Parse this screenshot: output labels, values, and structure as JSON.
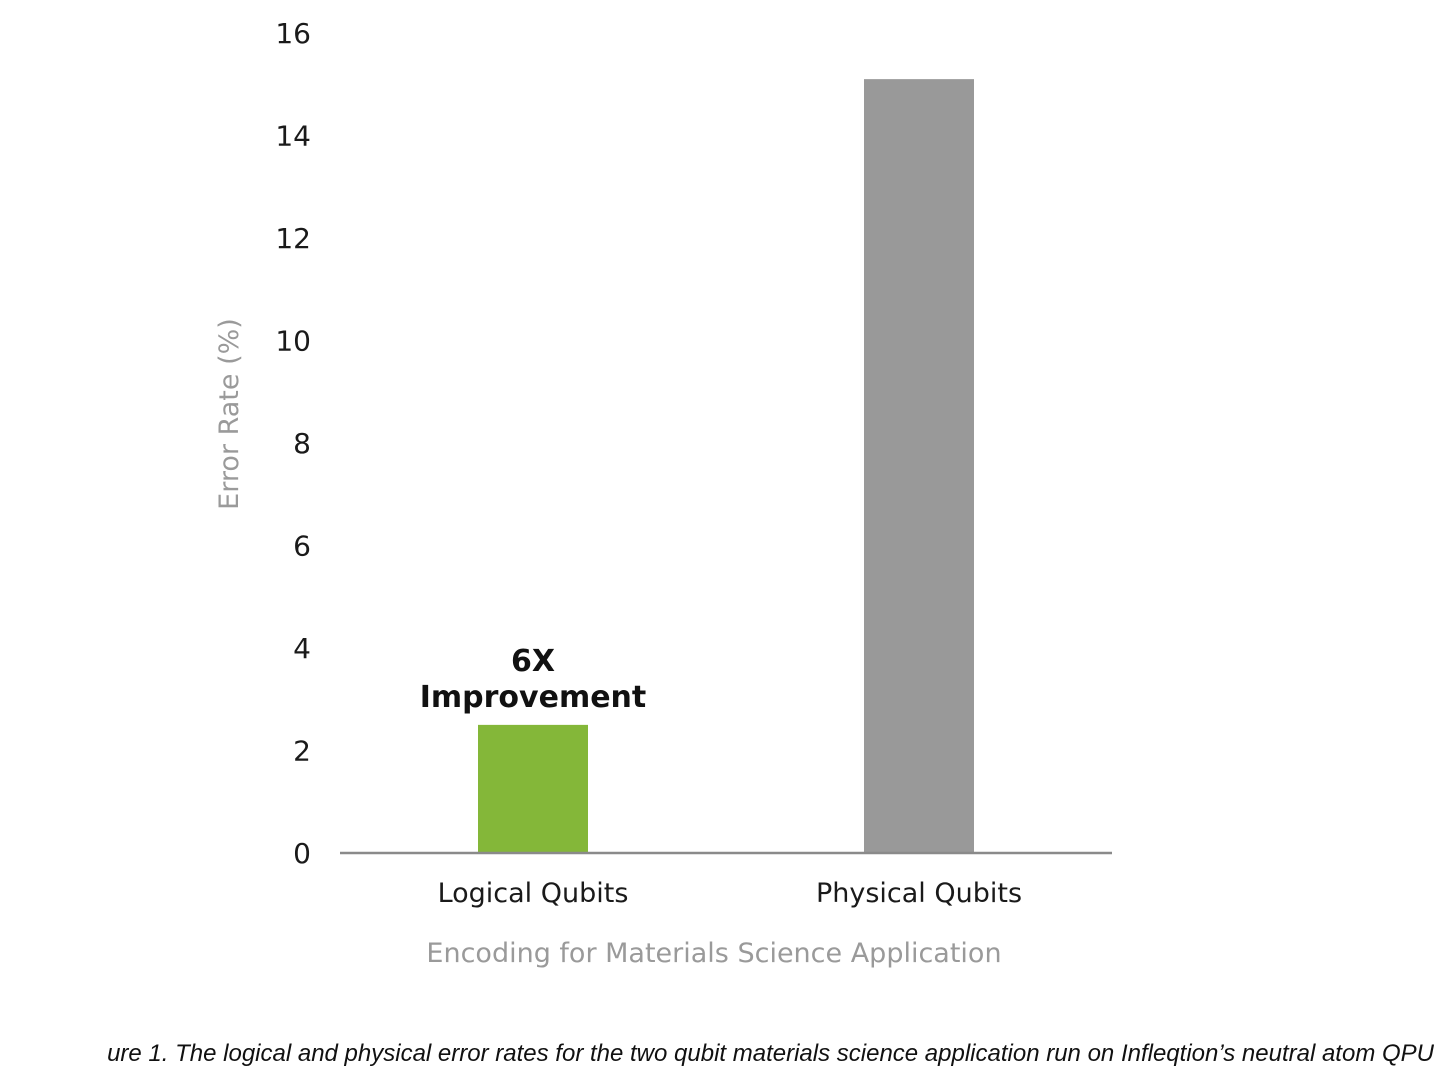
{
  "chart_data": {
    "type": "bar",
    "categories": [
      "Logical Qubits",
      "Physical Qubits"
    ],
    "values": [
      2.5,
      15.1
    ],
    "colors": [
      "#84b739",
      "#999999"
    ],
    "xlabel": "Encoding for Materials Science Application",
    "ylabel": "Error Rate (%)",
    "ylim": [
      0,
      16
    ],
    "yticks": [
      0,
      2,
      4,
      6,
      8,
      10,
      12,
      14,
      16
    ],
    "grid": false,
    "legend": "none",
    "annotations": [
      {
        "category": "Logical Qubits",
        "lines": [
          "6X",
          "Improvement"
        ]
      }
    ]
  },
  "caption": "ure 1. The logical and physical error rates for the two qubit materials science application run on Infleqtion’s neutral atom QPU"
}
